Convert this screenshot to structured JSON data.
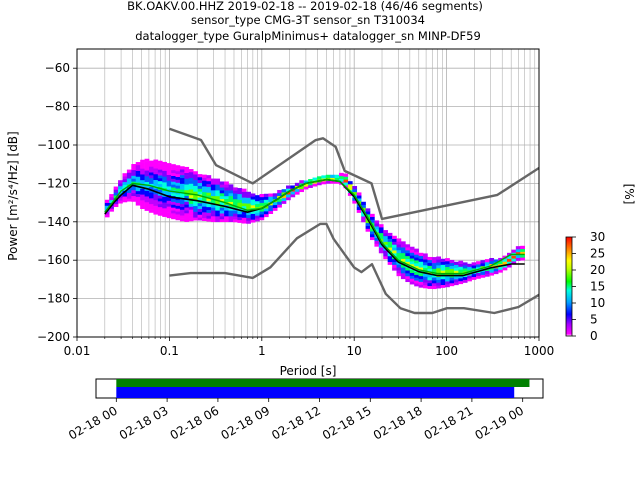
{
  "chart_data": {
    "type": "heatmap",
    "title_lines": [
      "BK.OAKV.00.HHZ   2019-02-18 -- 2019-02-18  (46/46 segments)",
      "sensor_type CMG-3T sensor_sn T310034",
      "datalogger_type GuralpMinimus+ datalogger_sn MINP-DF59"
    ],
    "xlabel": "Period [s]",
    "ylabel": "Power [m²/s⁴/Hz] [dB]",
    "x_scale": "log",
    "xlim": [
      0.01,
      1000
    ],
    "ylim": [
      -200,
      -50
    ],
    "x_tick_labels": [
      "0.01",
      "0.1",
      "1",
      "10",
      "100",
      "1000"
    ],
    "y_ticks": [
      -200,
      -180,
      -160,
      -140,
      -120,
      -100,
      -80,
      -60
    ],
    "grid": true,
    "colorbar": {
      "label": "[%]",
      "ticks": [
        0,
        5,
        10,
        15,
        20,
        25,
        30
      ],
      "range": [
        0,
        30
      ],
      "colormap": "pqlx"
    },
    "series": [
      {
        "role": "new_high_noise_model",
        "color": "#666666",
        "points": [
          [
            0.1,
            -91.5
          ],
          [
            0.22,
            -97.4
          ],
          [
            0.32,
            -110.5
          ],
          [
            0.8,
            -120
          ],
          [
            3.8,
            -97.5
          ],
          [
            4.6,
            -96.5
          ],
          [
            6.3,
            -101
          ],
          [
            7.9,
            -113.5
          ],
          [
            15.4,
            -120
          ],
          [
            20,
            -138.5
          ],
          [
            354.8,
            -126
          ],
          [
            1000,
            -112
          ]
        ]
      },
      {
        "role": "new_low_noise_model",
        "color": "#666666",
        "points": [
          [
            0.1,
            -168
          ],
          [
            0.17,
            -166.7
          ],
          [
            0.4,
            -166.7
          ],
          [
            0.8,
            -169.2
          ],
          [
            1.24,
            -163.7
          ],
          [
            2.4,
            -148.6
          ],
          [
            4.3,
            -141.1
          ],
          [
            5,
            -141.1
          ],
          [
            6,
            -149
          ],
          [
            10,
            -163.8
          ],
          [
            12,
            -166.2
          ],
          [
            15.6,
            -162.1
          ],
          [
            21.9,
            -177.5
          ],
          [
            31.6,
            -185
          ],
          [
            45,
            -187.5
          ],
          [
            70,
            -187.5
          ],
          [
            101,
            -185
          ],
          [
            154,
            -185
          ],
          [
            328,
            -187.5
          ],
          [
            600,
            -184.4
          ],
          [
            1000,
            -178
          ]
        ]
      },
      {
        "role": "mean",
        "color": "#000000",
        "points": [
          [
            0.02,
            -136
          ],
          [
            0.025,
            -130
          ],
          [
            0.03,
            -126
          ],
          [
            0.04,
            -121
          ],
          [
            0.06,
            -123
          ],
          [
            0.1,
            -127
          ],
          [
            0.2,
            -129
          ],
          [
            0.4,
            -132
          ],
          [
            0.7,
            -135
          ],
          [
            1,
            -133
          ],
          [
            1.5,
            -128
          ],
          [
            2,
            -124
          ],
          [
            3,
            -120
          ],
          [
            5,
            -118
          ],
          [
            7,
            -119
          ],
          [
            10,
            -127
          ],
          [
            15,
            -141
          ],
          [
            20,
            -152
          ],
          [
            30,
            -161
          ],
          [
            50,
            -166
          ],
          [
            80,
            -168
          ],
          [
            150,
            -168
          ],
          [
            300,
            -164
          ],
          [
            500,
            -162
          ],
          [
            700,
            -162
          ]
        ]
      },
      {
        "role": "mode",
        "color": "#00aa00",
        "points": [
          [
            0.02,
            -135
          ],
          [
            0.025,
            -129
          ],
          [
            0.03,
            -124
          ],
          [
            0.04,
            -120
          ],
          [
            0.06,
            -121
          ],
          [
            0.1,
            -124
          ],
          [
            0.2,
            -126
          ],
          [
            0.4,
            -130
          ],
          [
            0.7,
            -134
          ],
          [
            1,
            -133
          ],
          [
            1.5,
            -128
          ],
          [
            2,
            -124
          ],
          [
            3,
            -120
          ],
          [
            5,
            -118
          ],
          [
            7,
            -119
          ],
          [
            10,
            -126
          ],
          [
            15,
            -140
          ],
          [
            20,
            -151
          ],
          [
            30,
            -160
          ],
          [
            50,
            -165
          ],
          [
            80,
            -167
          ],
          [
            150,
            -167
          ],
          [
            300,
            -163
          ],
          [
            500,
            -157
          ],
          [
            700,
            -157
          ]
        ]
      }
    ],
    "heatmap_bands": [
      {
        "periods": [
          0.02,
          0.025,
          0.03,
          0.04,
          0.05,
          0.07,
          0.1,
          0.15,
          0.2,
          0.3,
          0.4,
          0.5,
          0.7,
          1,
          1.5,
          2,
          3,
          4,
          5,
          6,
          7,
          8,
          10,
          12,
          15,
          20,
          25,
          30,
          40,
          50,
          70,
          100,
          150,
          200,
          300,
          400,
          500,
          600,
          700
        ],
        "center": [
          -135,
          -129,
          -124,
          -120,
          -121,
          -122,
          -124,
          -126,
          -127,
          -129,
          -130,
          -131,
          -133,
          -133,
          -129,
          -125,
          -121,
          -119,
          -118,
          -118,
          -118,
          -119,
          -126,
          -133,
          -142,
          -150,
          -155,
          -159,
          -163,
          -165,
          -167,
          -167,
          -167,
          -166,
          -164,
          -163,
          -160,
          -157,
          -157
        ],
        "spread": [
          4,
          4,
          6,
          9,
          12,
          14,
          14,
          14,
          12,
          11,
          10,
          9,
          8,
          6,
          4,
          3,
          2,
          2,
          2,
          2,
          2,
          3,
          4,
          5,
          6,
          7,
          8,
          9,
          9,
          9,
          8,
          7,
          5,
          4,
          4,
          3,
          3,
          3,
          3
        ]
      }
    ]
  },
  "timeline": {
    "tick_labels": [
      "02-18 00",
      "02-18 03",
      "02-18 06",
      "02-18 09",
      "02-18 12",
      "02-18 15",
      "02-18 18",
      "02-18 21",
      "02-19 00"
    ],
    "tick_hours": [
      0,
      3,
      6,
      9,
      12,
      15,
      18,
      21,
      24
    ],
    "range_hours": [
      -1.2,
      25.2
    ],
    "data_coverage_hours": [
      0,
      24.4
    ],
    "psd_coverage_hours": [
      0,
      23.5
    ],
    "data_coverage_color": "#008000",
    "psd_coverage_color": "#0000ff"
  }
}
